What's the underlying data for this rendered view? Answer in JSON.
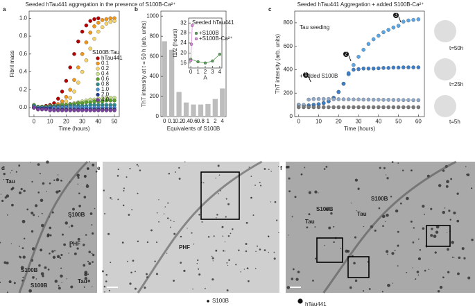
{
  "chart_data": [
    {
      "type": "scatter",
      "label": "a",
      "title": "Seeded hTau441 aggregation in the presence of S100B-Ca²⁺",
      "xlabel": "Time (hours)",
      "ylabel": "Fibril mass",
      "xlim": [
        -3,
        53
      ],
      "ylim": [
        -0.1,
        1.08
      ],
      "xticks": [
        0,
        10,
        20,
        30,
        40,
        50
      ],
      "yticks": [
        {
          "value": 0,
          "label": "0.0"
        },
        0.2,
        0.4,
        0.6,
        0.8,
        {
          "value": 1,
          "label": "1.0"
        }
      ],
      "legend_title": "S100B:Tau",
      "legend": "right",
      "x": [
        0,
        2.5,
        5,
        7.5,
        10,
        12.5,
        15,
        17.5,
        20,
        22.5,
        25,
        27.5,
        30,
        32.5,
        35,
        37.5,
        40,
        42.5,
        45,
        47.5,
        50
      ],
      "series": [
        {
          "name": "hTau441",
          "color": "#b30000",
          "values": [
            0,
            0,
            0.01,
            0.02,
            0.03,
            0.05,
            0.1,
            0.18,
            0.3,
            0.45,
            0.6,
            0.74,
            0.85,
            0.92,
            0.97,
            0.99,
            1.0,
            null,
            null,
            null,
            null
          ]
        },
        {
          "name": "0.1",
          "color": "#f0961a",
          "values": [
            0,
            0,
            0,
            0.01,
            0.01,
            0.02,
            0.04,
            0.07,
            0.12,
            0.2,
            0.31,
            0.45,
            0.6,
            0.73,
            0.84,
            0.91,
            0.95,
            0.98,
            0.99,
            1.0,
            1.0
          ]
        },
        {
          "name": "0.2",
          "color": "#f5d36a",
          "values": [
            0,
            0,
            0,
            0,
            0.01,
            0.01,
            0.02,
            0.04,
            0.07,
            0.11,
            0.18,
            0.28,
            0.4,
            0.53,
            0.66,
            0.77,
            0.85,
            0.9,
            0.94,
            0.96,
            0.97
          ]
        },
        {
          "name": "0.4",
          "color": "#c8e08c",
          "values": [
            0.02,
            0.01,
            0.01,
            0.01,
            0.01,
            0.02,
            0.02,
            0.03,
            0.03,
            0.04,
            0.05,
            0.06,
            0.07,
            0.08,
            0.09,
            0.09,
            0.1,
            0.1,
            0.11,
            0.11,
            0.11
          ]
        },
        {
          "name": "0.6",
          "color": "#5aa02c",
          "values": [
            0.03,
            0.01,
            0.01,
            0.01,
            0.02,
            0.02,
            0.02,
            0.03,
            0.03,
            0.04,
            0.04,
            0.05,
            0.05,
            0.06,
            0.06,
            0.07,
            0.07,
            0.07,
            0.08,
            0.08,
            0.08
          ]
        },
        {
          "name": "0.8",
          "color": "#2e8b8b",
          "values": [
            0.02,
            0.0,
            0.0,
            0.0,
            0.01,
            0.01,
            0.01,
            0.01,
            0.01,
            0.02,
            0.02,
            0.02,
            0.02,
            0.02,
            0.03,
            0.03,
            0.03,
            0.03,
            0.03,
            0.03,
            0.03
          ]
        },
        {
          "name": "1.0",
          "color": "#4a90d9",
          "values": [
            0.01,
            0,
            0,
            0,
            0,
            0,
            0,
            0,
            0,
            0,
            0,
            0,
            0,
            0,
            0,
            0,
            0,
            0,
            0,
            0,
            0
          ]
        },
        {
          "name": "2.0",
          "color": "#1f3a93",
          "values": [
            0,
            -0.01,
            -0.01,
            -0.01,
            -0.01,
            -0.02,
            -0.02,
            -0.02,
            -0.02,
            -0.02,
            -0.02,
            -0.02,
            -0.02,
            -0.02,
            -0.02,
            -0.02,
            -0.02,
            -0.02,
            -0.02,
            -0.02,
            -0.02
          ]
        },
        {
          "name": "4.0",
          "color": "#7b3f9e",
          "values": [
            0,
            -0.02,
            -0.02,
            -0.02,
            -0.03,
            -0.03,
            -0.03,
            -0.03,
            -0.03,
            -0.03,
            -0.03,
            -0.03,
            -0.03,
            -0.03,
            -0.03,
            -0.03,
            -0.03,
            -0.03,
            -0.03,
            -0.03,
            -0.03
          ]
        }
      ]
    },
    {
      "type": "bar",
      "label": "b",
      "xlabel": "Equivalents of S100B",
      "ylabel": "ThT intensity at t = 50 h (arb. units)",
      "categories": [
        "0",
        "0.1",
        "0.2",
        "0.4",
        "0.6",
        "0.8",
        "1",
        "2",
        "4"
      ],
      "values": [
        750,
        665,
        245,
        140,
        120,
        120,
        125,
        175,
        280
      ],
      "color": "#bdbdbd",
      "ylim": [
        0,
        1050
      ],
      "yticks": [
        0,
        200,
        400,
        600,
        800,
        1000
      ],
      "inset": {
        "type": "line",
        "title": "Seeded hTau441",
        "xlabel": "A",
        "ylabel": "t1/2 (hours)",
        "xlim": [
          -0.3,
          4.3
        ],
        "ylim": [
          14,
          34
        ],
        "xticks": [
          0,
          1,
          2,
          3,
          4
        ],
        "yticks": [
          16,
          20,
          24,
          28,
          32
        ],
        "series": [
          {
            "name": "+S100B",
            "color": "#5a9e5a",
            "x": [
              0,
              1,
              2,
              3,
              4
            ],
            "values": [
              17.5,
              16.5,
              16,
              16.8,
              19.5
            ]
          },
          {
            "name": "+S100B-Ca²⁺",
            "color": "#d98ad9",
            "x": [
              0,
              0.1,
              0.2
            ],
            "values": [
              17,
              23.5,
              31
            ]
          }
        ]
      }
    },
    {
      "type": "scatter",
      "label": "c",
      "title": "Seeded hTau441 Aggregation + added S100B-Ca²⁺",
      "xlabel": "Time (hours)",
      "ylabel": "ThT intensity (arb. units)",
      "xlim": [
        -2,
        63
      ],
      "ylim": [
        0,
        900
      ],
      "xticks": [
        0,
        10,
        20,
        30,
        40,
        50,
        60
      ],
      "yticks": [
        0,
        200,
        400,
        600,
        800
      ],
      "annotations": [
        "Tau seeding",
        "+ added S100B",
        "t=50h",
        "t=25h",
        "t=5h"
      ],
      "markers": [
        "1",
        "2",
        "3"
      ],
      "x": [
        0,
        2.5,
        5,
        7.5,
        10,
        12.5,
        15,
        17.5,
        20,
        22.5,
        25,
        27.5,
        30,
        32.5,
        35,
        37.5,
        40,
        42.5,
        45,
        47.5,
        50,
        52.5,
        55,
        57.5,
        60
      ],
      "series": [
        {
          "color": "#5ba7e6",
          "values": [
            100,
            95,
            95,
            100,
            105,
            115,
            130,
            160,
            210,
            280,
            360,
            440,
            510,
            570,
            620,
            660,
            690,
            720,
            740,
            760,
            775,
            810,
            820,
            825,
            830
          ]
        },
        {
          "color": "#3d7fc9",
          "values": [
            100,
            95,
            95,
            100,
            105,
            115,
            130,
            160,
            210,
            280,
            370,
            400,
            405,
            410,
            410,
            410,
            412,
            415,
            415,
            418,
            418,
            420,
            420,
            420,
            420
          ]
        },
        {
          "color": "#8fa8c8",
          "values": [
            100,
            100,
            145,
            150,
            150,
            150,
            150,
            148,
            148,
            147,
            147,
            146,
            146,
            145,
            145,
            144,
            144,
            143,
            143,
            142,
            142,
            141,
            141,
            140,
            140
          ]
        },
        {
          "color": "#7a7a7a",
          "values": [
            80,
            80,
            80,
            80,
            80,
            80,
            80,
            80,
            80,
            80,
            80,
            80,
            80,
            80,
            80,
            80,
            80,
            80,
            80,
            80,
            80,
            80,
            80,
            80,
            80
          ]
        }
      ]
    }
  ],
  "images": [
    {
      "label": "d",
      "annotations": [
        "Tau",
        "S100B",
        "PHF",
        "S100B",
        "S100B",
        "Tau"
      ]
    },
    {
      "label": "e",
      "annotations": [
        "PHF"
      ]
    },
    {
      "label": "f",
      "annotations": [
        "S100B",
        "S100B",
        "Tau",
        "Tau"
      ]
    }
  ],
  "legend": [
    "S100B",
    "hTau441"
  ]
}
